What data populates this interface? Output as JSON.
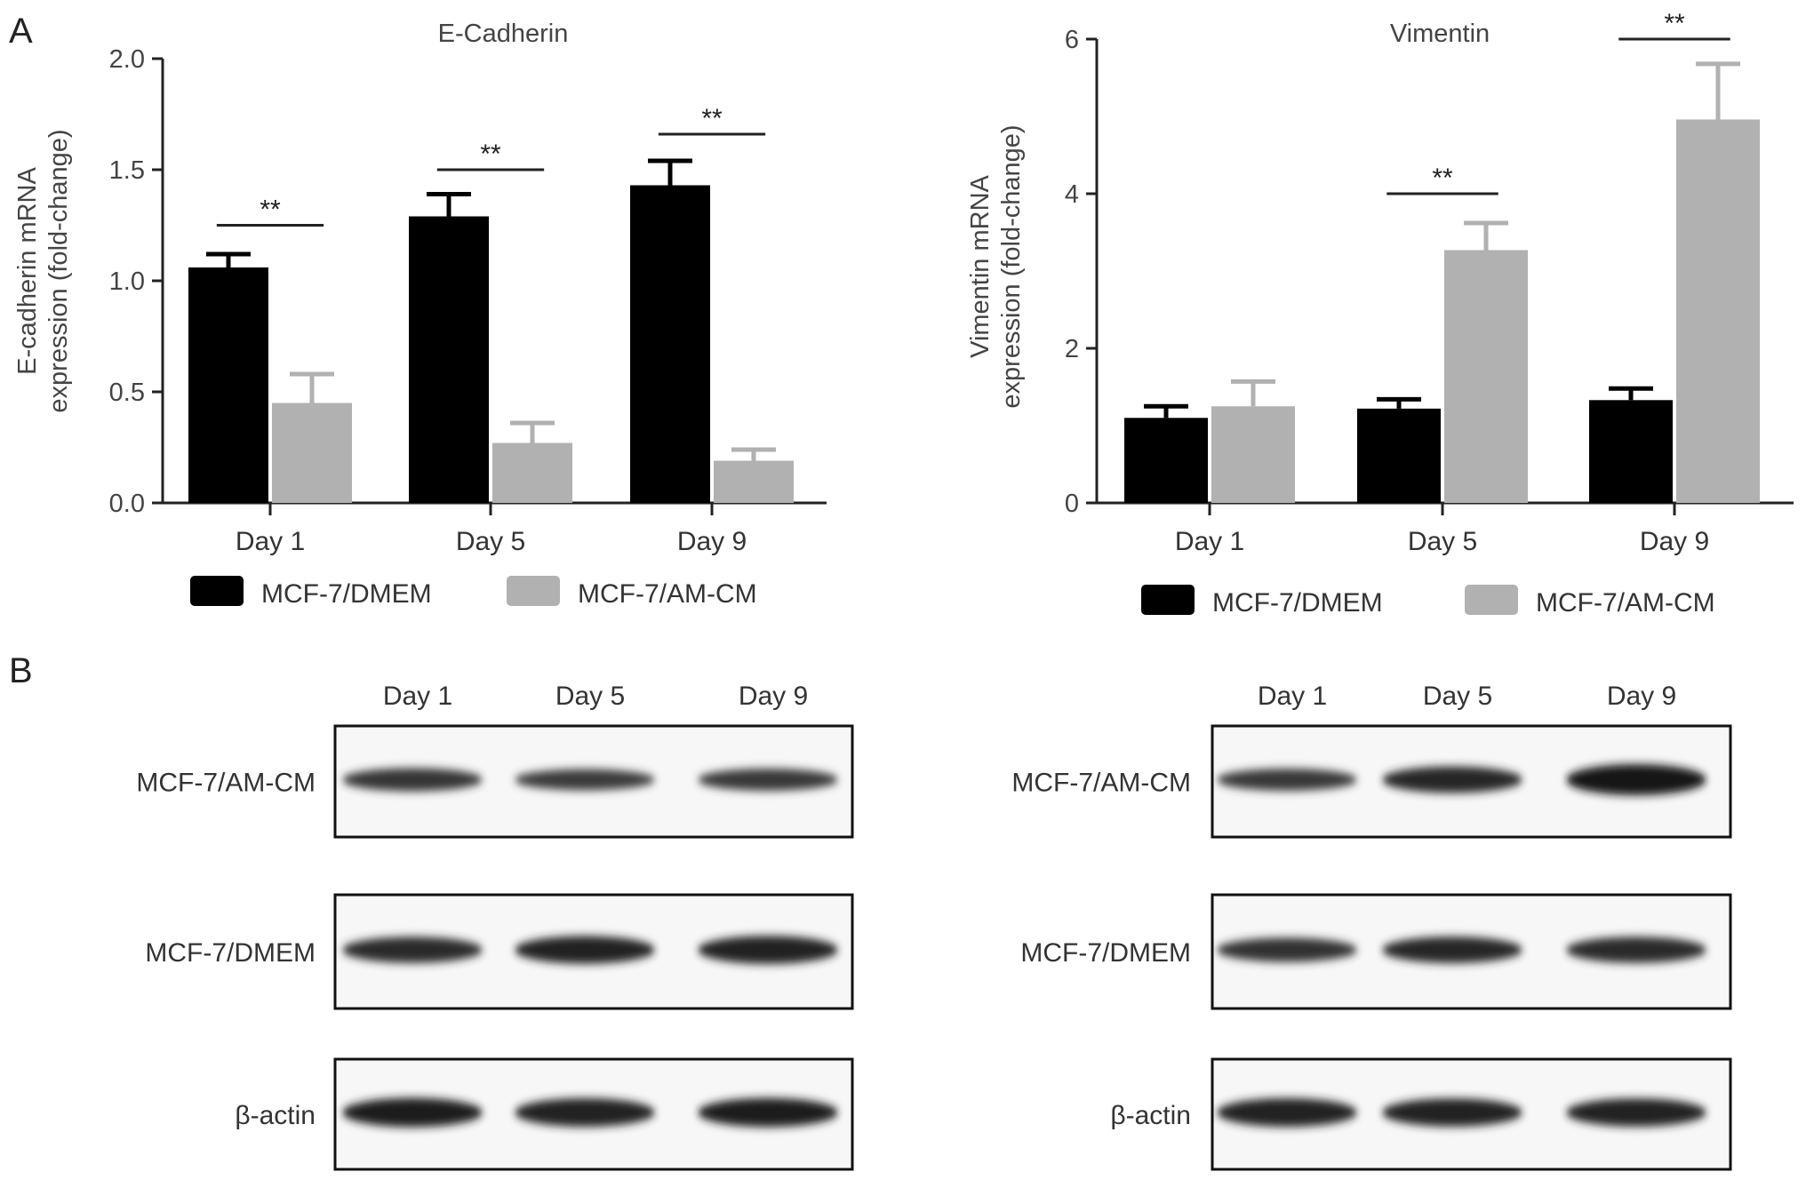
{
  "panels": {
    "a": "A",
    "b": "B"
  },
  "legend": {
    "series": [
      {
        "name": "MCF-7/DMEM",
        "color": "#000000"
      },
      {
        "name": "MCF-7/AM-CM",
        "color": "#b1b1b1"
      }
    ]
  },
  "chart_data": [
    {
      "type": "bar",
      "title": "E-Cadherin",
      "ylabel_line1": "E-cadherin mRNA",
      "ylabel_line2": "expression (fold-change)",
      "xlabel": "",
      "categories": [
        "Day 1",
        "Day 5",
        "Day 9"
      ],
      "ylim": [
        0,
        2.0
      ],
      "yticks": [
        "0.0",
        "0.5",
        "1.0",
        "1.5",
        "2.0"
      ],
      "series": [
        {
          "name": "MCF-7/DMEM",
          "values": [
            1.06,
            1.29,
            1.43
          ],
          "errors": [
            0.06,
            0.1,
            0.11
          ]
        },
        {
          "name": "MCF-7/AM-CM",
          "values": [
            0.45,
            0.27,
            0.19
          ],
          "errors": [
            0.13,
            0.09,
            0.05
          ]
        }
      ],
      "significance": [
        {
          "category": 0,
          "label": "**",
          "y": 1.25
        },
        {
          "category": 1,
          "label": "**",
          "y": 1.5
        },
        {
          "category": 2,
          "label": "**",
          "y": 1.66
        }
      ],
      "legend_position": "bottom"
    },
    {
      "type": "bar",
      "title": "Vimentin",
      "ylabel_line1": "Vimentin mRNA",
      "ylabel_line2": "expression (fold-change)",
      "xlabel": "",
      "categories": [
        "Day 1",
        "Day 5",
        "Day 9"
      ],
      "ylim": [
        0,
        6
      ],
      "yticks": [
        "0",
        "2",
        "4",
        "6"
      ],
      "series": [
        {
          "name": "MCF-7/DMEM",
          "values": [
            1.1,
            1.22,
            1.33
          ],
          "errors": [
            0.15,
            0.12,
            0.15
          ]
        },
        {
          "name": "MCF-7/AM-CM",
          "values": [
            1.25,
            3.27,
            4.96
          ],
          "errors": [
            0.32,
            0.35,
            0.72
          ]
        }
      ],
      "significance": [
        {
          "category": 1,
          "label": "**",
          "y": 4.0
        },
        {
          "category": 2,
          "label": "**",
          "y": 6.0
        }
      ],
      "legend_position": "bottom"
    }
  ],
  "blots": [
    {
      "lanes": [
        "Day 1",
        "Day 5",
        "Day 9"
      ],
      "rows": [
        {
          "label": "MCF-7/AM-CM",
          "intensity": [
            0.55,
            0.45,
            0.5
          ]
        },
        {
          "label": "MCF-7/DMEM",
          "intensity": [
            0.7,
            0.78,
            0.8
          ]
        },
        {
          "label": "β-actin",
          "intensity": [
            0.85,
            0.82,
            0.84
          ]
        }
      ]
    },
    {
      "lanes": [
        "Day 1",
        "Day 5",
        "Day 9"
      ],
      "rows": [
        {
          "label": "MCF-7/AM-CM",
          "intensity": [
            0.5,
            0.72,
            0.95
          ]
        },
        {
          "label": "MCF-7/DMEM",
          "intensity": [
            0.6,
            0.72,
            0.7
          ]
        },
        {
          "label": "β-actin",
          "intensity": [
            0.82,
            0.8,
            0.8
          ]
        }
      ]
    }
  ]
}
